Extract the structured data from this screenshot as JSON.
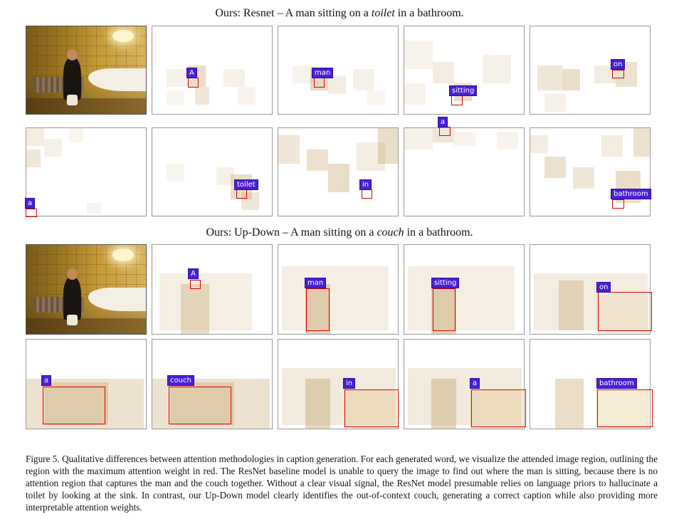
{
  "sections": [
    {
      "title_prefix": "Ours: Resnet – A man sitting on a ",
      "title_emph": "toilet",
      "title_suffix": " in a bathroom.",
      "words": [
        "A",
        "man",
        "sitting",
        "on",
        "a",
        "toilet",
        "in",
        "a",
        "bathroom"
      ]
    },
    {
      "title_prefix": "Ours: Up-Down – A man sitting on a ",
      "title_emph": "couch",
      "title_suffix": " in a bathroom.",
      "words": [
        "A",
        "man",
        "sitting",
        "on",
        "a",
        "couch",
        "in",
        "a",
        "bathroom"
      ]
    }
  ],
  "caption": "Figure 5. Qualitative differences between attention methodologies in caption generation. For each generated word, we visualize the attended image region, outlining the region with the maximum attention weight in red. The ResNet baseline model is unable to query the image to find out where the man is sitting, because there is no attention region that captures the man and the couch together. Without a clear visual signal, the ResNet model presumable relies on language priors to hallucinate a toilet by looking at the sink. In contrast, our Up-Down model clearly identifies the out-of-context couch, generating a correct caption while also providing more interpretable attention weights."
}
